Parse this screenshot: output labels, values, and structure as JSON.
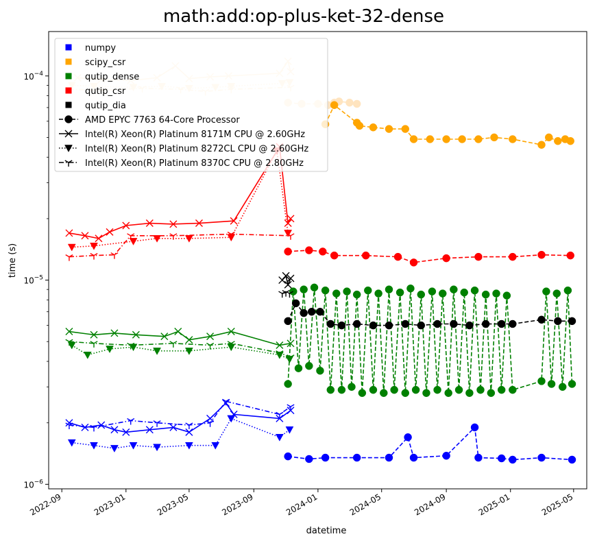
{
  "chart_data": {
    "type": "line",
    "title": "math:add:op-plus-ket-32-dense",
    "xlabel": "datetime",
    "ylabel": "time (s)",
    "yscale": "log",
    "ylim": [
      9.5e-07,
      0.000165
    ],
    "xlim": [
      "2022-08-07",
      "2025-05-26"
    ],
    "x_ticks": [
      "2022-09",
      "2023-01",
      "2023-05",
      "2023-09",
      "2024-01",
      "2024-05",
      "2024-09",
      "2025-01",
      "2025-05"
    ],
    "y_ticks": [
      {
        "value": 1e-06,
        "label": "10",
        "exp": "−6"
      },
      {
        "value": 1e-05,
        "label": "10",
        "exp": "−5"
      },
      {
        "value": 0.0001,
        "label": "10",
        "exp": "−4"
      }
    ],
    "legend_position": "upper-left",
    "legend_colors": [
      {
        "name": "numpy",
        "color": "#0000ff"
      },
      {
        "name": "scipy_csr",
        "color": "#ffa500"
      },
      {
        "name": "qutip_dense",
        "color": "#008000"
      },
      {
        "name": "qutip_csr",
        "color": "#ff0000"
      },
      {
        "name": "qutip_dia",
        "color": "#000000"
      }
    ],
    "legend_cpus": [
      {
        "name": "AMD EPYC 7763 64-Core Processor",
        "marker": "circle",
        "dash": "dashed"
      },
      {
        "name": "Intel(R) Xeon(R) Platinum 8171M CPU @ 2.60GHz",
        "marker": "x",
        "dash": "solid"
      },
      {
        "name": "Intel(R) Xeon(R) Platinum 8272CL CPU @ 2.60GHz",
        "marker": "triangle-down",
        "dash": "dotted"
      },
      {
        "name": "Intel(R) Xeon(R) Platinum 8370C CPU @ 2.80GHz",
        "marker": "tri-down",
        "dash": "dashdot"
      }
    ],
    "series": [
      {
        "library": "scipy_csr",
        "color": "#ffe4bf",
        "cpu": "8171M",
        "marker": "x",
        "dash": "solid",
        "x": [
          "2022-10-01",
          "2022-11-15",
          "2023-01-10",
          "2023-03-01",
          "2023-04-05",
          "2023-05-01",
          "2023-06-10",
          "2023-07-15",
          "2023-10-20",
          "2023-11-05",
          "2023-11-10"
        ],
        "y": [
          9.8e-05,
          9.6e-05,
          9.5e-05,
          9.8e-05,
          0.000112,
          9.7e-05,
          9.9e-05,
          0.0001,
          0.000103,
          0.000118,
          0.000105
        ]
      },
      {
        "library": "scipy_csr",
        "color": "#ffe4bf",
        "cpu": "8272CL",
        "marker": "triangle-down",
        "dash": "dotted",
        "x": [
          "2022-09-20",
          "2022-11-01",
          "2023-01-15",
          "2023-03-10",
          "2023-05-01",
          "2023-06-20",
          "2023-07-20",
          "2023-10-25",
          "2023-11-08"
        ],
        "y": [
          9e-05,
          8.9e-05,
          8.8e-05,
          8.9e-05,
          8.7e-05,
          8.8e-05,
          8.9e-05,
          9.2e-05,
          9.3e-05
        ]
      },
      {
        "library": "scipy_csr",
        "color": "#ffe4bf",
        "cpu": "8370C",
        "marker": "tri-down",
        "dash": "dashdot",
        "x": [
          "2022-09-15",
          "2022-11-20",
          "2023-02-01",
          "2023-04-15",
          "2023-06-01",
          "2023-07-20",
          "2023-11-10"
        ],
        "y": [
          8.6e-05,
          8.5e-05,
          8.7e-05,
          8.6e-05,
          8.4e-05,
          8.6e-05,
          8.8e-05
        ]
      },
      {
        "library": "scipy_csr",
        "color": "#ffe4bf",
        "cpu": "EPYC",
        "marker": "circle",
        "dash": "dashed",
        "x": [
          "2023-11-05",
          "2023-12-01",
          "2024-01-01",
          "2024-01-20",
          "2024-02-01",
          "2024-02-10",
          "2024-03-01",
          "2024-03-15"
        ],
        "y": [
          7.4e-05,
          7.3e-05,
          7.3e-05,
          7.2e-05,
          7.4e-05,
          7.5e-05,
          7.4e-05,
          7.3e-05
        ]
      },
      {
        "library": "scipy_csr",
        "color": "#ffa500",
        "cpu": "EPYC",
        "marker": "circle",
        "dash": "dashed",
        "x": [
          "2024-01-15",
          "2024-02-01",
          "2024-03-15",
          "2024-03-20",
          "2024-04-15",
          "2024-05-15",
          "2024-06-15",
          "2024-07-01",
          "2024-08-01",
          "2024-09-01",
          "2024-10-01",
          "2024-11-01",
          "2024-12-01",
          "2025-01-05",
          "2025-03-01",
          "2025-03-15",
          "2025-04-01",
          "2025-04-15",
          "2025-04-25"
        ],
        "y": [
          5.8e-05,
          7.2e-05,
          5.9e-05,
          5.7e-05,
          5.6e-05,
          5.5e-05,
          5.5e-05,
          4.9e-05,
          4.9e-05,
          4.9e-05,
          4.9e-05,
          4.9e-05,
          5e-05,
          4.9e-05,
          4.6e-05,
          5e-05,
          4.8e-05,
          4.9e-05,
          4.8e-05
        ]
      },
      {
        "library": "qutip_csr",
        "color": "#ff0000",
        "cpu": "8171M",
        "marker": "x",
        "dash": "solid",
        "x": [
          "2022-09-15",
          "2022-10-15",
          "2022-11-10",
          "2022-12-01",
          "2023-01-01",
          "2023-02-15",
          "2023-04-01",
          "2023-05-20",
          "2023-07-25",
          "2023-10-20",
          "2023-11-05",
          "2023-11-10"
        ],
        "y": [
          1.7e-05,
          1.65e-05,
          1.6e-05,
          1.72e-05,
          1.85e-05,
          1.9e-05,
          1.88e-05,
          1.9e-05,
          1.95e-05,
          4.5e-05,
          1.9e-05,
          2e-05
        ]
      },
      {
        "library": "qutip_csr",
        "color": "#ff0000",
        "cpu": "8272CL",
        "marker": "triangle-down",
        "dash": "dotted",
        "x": [
          "2022-09-20",
          "2022-11-01",
          "2023-01-15",
          "2023-03-01",
          "2023-05-01",
          "2023-07-20",
          "2023-10-15",
          "2023-11-05"
        ],
        "y": [
          1.45e-05,
          1.47e-05,
          1.55e-05,
          1.6e-05,
          1.6e-05,
          1.62e-05,
          4.3e-05,
          1.7e-05
        ]
      },
      {
        "library": "qutip_csr",
        "color": "#ff0000",
        "cpu": "8370C",
        "marker": "tri-down",
        "dash": "dashdot",
        "x": [
          "2022-09-15",
          "2022-11-01",
          "2022-12-10",
          "2023-01-10",
          "2023-04-01",
          "2023-07-20",
          "2023-11-10"
        ],
        "y": [
          1.3e-05,
          1.32e-05,
          1.33e-05,
          1.65e-05,
          1.65e-05,
          1.68e-05,
          1.65e-05
        ]
      },
      {
        "library": "qutip_csr",
        "color": "#ff0000",
        "cpu": "EPYC",
        "marker": "circle",
        "dash": "dashed",
        "x": [
          "2023-11-05",
          "2023-12-15",
          "2024-01-10",
          "2024-02-01",
          "2024-04-01",
          "2024-06-01",
          "2024-07-01",
          "2024-09-01",
          "2024-11-01",
          "2025-01-05",
          "2025-03-01",
          "2025-04-25"
        ],
        "y": [
          1.38e-05,
          1.4e-05,
          1.38e-05,
          1.32e-05,
          1.32e-05,
          1.3e-05,
          1.22e-05,
          1.28e-05,
          1.3e-05,
          1.3e-05,
          1.33e-05,
          1.32e-05
        ]
      },
      {
        "library": "qutip_dense",
        "color": "#008000",
        "cpu": "8171M",
        "marker": "x",
        "dash": "solid",
        "x": [
          "2022-09-15",
          "2022-11-01",
          "2022-12-10",
          "2023-01-20",
          "2023-03-15",
          "2023-04-10",
          "2023-05-01",
          "2023-06-10",
          "2023-07-20",
          "2023-10-20",
          "2023-11-10"
        ],
        "y": [
          5.6e-06,
          5.4e-06,
          5.5e-06,
          5.4e-06,
          5.3e-06,
          5.6e-06,
          5.1e-06,
          5.3e-06,
          5.6e-06,
          4.8e-06,
          4.9e-06
        ]
      },
      {
        "library": "qutip_dense",
        "color": "#008000",
        "cpu": "8272CL",
        "marker": "triangle-down",
        "dash": "dotted",
        "x": [
          "2022-09-20",
          "2022-10-20",
          "2022-12-01",
          "2023-01-15",
          "2023-03-01",
          "2023-05-01",
          "2023-07-20",
          "2023-10-20",
          "2023-11-08"
        ],
        "y": [
          4.8e-06,
          4.3e-06,
          4.6e-06,
          4.7e-06,
          4.5e-06,
          4.5e-06,
          4.7e-06,
          4.3e-06,
          4.1e-06
        ]
      },
      {
        "library": "qutip_dense",
        "color": "#008000",
        "cpu": "8370C",
        "marker": "tri-down",
        "dash": "dashdot",
        "x": [
          "2022-09-15",
          "2022-11-01",
          "2023-01-10",
          "2023-04-01",
          "2023-06-10",
          "2023-07-20",
          "2023-10-20",
          "2023-11-10"
        ],
        "y": [
          5e-06,
          4.9e-06,
          4.8e-06,
          4.9e-06,
          4.8e-06,
          4.9e-06,
          4.4e-06,
          4.2e-06
        ]
      },
      {
        "library": "qutip_dense",
        "color": "#008000",
        "cpu": "EPYC",
        "marker": "circle",
        "dash": "dashed",
        "x": [
          "2023-11-05",
          "2023-11-15",
          "2023-11-25",
          "2023-12-05",
          "2023-12-15",
          "2023-12-25",
          "2024-01-05",
          "2024-01-15",
          "2024-01-25",
          "2024-02-05",
          "2024-02-15",
          "2024-02-25",
          "2024-03-05",
          "2024-03-15",
          "2024-03-25",
          "2024-04-05",
          "2024-04-15",
          "2024-04-25",
          "2024-05-05",
          "2024-05-15",
          "2024-05-25",
          "2024-06-05",
          "2024-06-15",
          "2024-06-25",
          "2024-07-05",
          "2024-07-15",
          "2024-07-25",
          "2024-08-05",
          "2024-08-15",
          "2024-08-25",
          "2024-09-05",
          "2024-09-15",
          "2024-09-25",
          "2024-10-05",
          "2024-10-15",
          "2024-10-25",
          "2024-11-05",
          "2024-11-15",
          "2024-11-25",
          "2024-12-05",
          "2024-12-15",
          "2024-12-25",
          "2025-01-05",
          "2025-03-01",
          "2025-03-10",
          "2025-03-20",
          "2025-03-30",
          "2025-04-10",
          "2025-04-20",
          "2025-04-28"
        ],
        "y": [
          3.1e-06,
          8.8e-06,
          3.7e-06,
          9e-06,
          3.8e-06,
          9.2e-06,
          3.6e-06,
          8.9e-06,
          2.9e-06,
          8.6e-06,
          2.9e-06,
          8.8e-06,
          3e-06,
          8.5e-06,
          2.8e-06,
          8.9e-06,
          2.9e-06,
          8.6e-06,
          2.8e-06,
          9e-06,
          2.9e-06,
          8.7e-06,
          2.8e-06,
          9.1e-06,
          2.9e-06,
          8.5e-06,
          2.8e-06,
          8.8e-06,
          2.9e-06,
          8.6e-06,
          2.8e-06,
          9e-06,
          2.9e-06,
          8.7e-06,
          2.8e-06,
          8.9e-06,
          2.9e-06,
          8.5e-06,
          2.8e-06,
          8.6e-06,
          2.9e-06,
          8.4e-06,
          2.9e-06,
          3.2e-06,
          8.8e-06,
          3.1e-06,
          8.6e-06,
          3e-06,
          8.9e-06,
          3.1e-06
        ]
      },
      {
        "library": "qutip_dia",
        "color": "#000000",
        "cpu": "8171M",
        "marker": "x",
        "dash": "solid",
        "x": [
          "2023-10-25",
          "2023-11-01",
          "2023-11-05",
          "2023-11-10"
        ],
        "y": [
          1e-05,
          1.05e-05,
          9.5e-06,
          1.02e-05
        ]
      },
      {
        "library": "qutip_dia",
        "color": "#000000",
        "cpu": "8370C",
        "marker": "tri-down",
        "dash": "dashdot",
        "x": [
          "2023-10-25",
          "2023-11-01",
          "2023-11-08"
        ],
        "y": [
          8.6e-06,
          8.7e-06,
          8.6e-06
        ]
      },
      {
        "library": "qutip_dia",
        "color": "#000000",
        "cpu": "EPYC",
        "marker": "circle",
        "dash": "dashed",
        "x": [
          "2023-11-05",
          "2023-11-20",
          "2023-12-05",
          "2023-12-20",
          "2024-01-05",
          "2024-01-25",
          "2024-02-15",
          "2024-03-15",
          "2024-04-15",
          "2024-05-15",
          "2024-06-15",
          "2024-07-15",
          "2024-08-15",
          "2024-09-15",
          "2024-10-15",
          "2024-11-15",
          "2024-12-15",
          "2025-01-05",
          "2025-03-01",
          "2025-04-01",
          "2025-04-28"
        ],
        "y": [
          6.3e-06,
          7.7e-06,
          6.9e-06,
          7e-06,
          7e-06,
          6.1e-06,
          6e-06,
          6.1e-06,
          6e-06,
          6e-06,
          6.1e-06,
          6e-06,
          6.1e-06,
          6.1e-06,
          6e-06,
          6.1e-06,
          6.1e-06,
          6.1e-06,
          6.4e-06,
          6.3e-06,
          6.3e-06
        ]
      },
      {
        "library": "numpy",
        "color": "#0000ff",
        "cpu": "8171M",
        "marker": "x",
        "dash": "solid",
        "x": [
          "2022-09-15",
          "2022-10-15",
          "2022-11-15",
          "2022-12-10",
          "2023-01-01",
          "2023-02-15",
          "2023-04-01",
          "2023-05-01",
          "2023-06-10",
          "2023-07-10",
          "2023-07-25",
          "2023-10-20",
          "2023-11-10"
        ],
        "y": [
          2e-06,
          1.9e-06,
          1.95e-06,
          1.85e-06,
          1.8e-06,
          1.85e-06,
          1.9e-06,
          1.8e-06,
          2.1e-06,
          2.5e-06,
          2.2e-06,
          2.1e-06,
          2.3e-06
        ]
      },
      {
        "library": "numpy",
        "color": "#0000ff",
        "cpu": "8272CL",
        "marker": "triangle-down",
        "dash": "dotted",
        "x": [
          "2022-09-20",
          "2022-11-01",
          "2022-12-10",
          "2023-01-15",
          "2023-03-01",
          "2023-05-01",
          "2023-06-20",
          "2023-07-20",
          "2023-10-20",
          "2023-11-08"
        ],
        "y": [
          1.6e-06,
          1.55e-06,
          1.5e-06,
          1.55e-06,
          1.52e-06,
          1.55e-06,
          1.55e-06,
          2.1e-06,
          1.7e-06,
          1.85e-06
        ]
      },
      {
        "library": "numpy",
        "color": "#0000ff",
        "cpu": "8370C",
        "marker": "tri-down",
        "dash": "dashdot",
        "x": [
          "2022-09-15",
          "2022-11-01",
          "2023-01-10",
          "2023-03-01",
          "2023-05-01",
          "2023-06-10",
          "2023-07-10",
          "2023-10-20",
          "2023-11-10"
        ],
        "y": [
          1.95e-06,
          1.9e-06,
          2.05e-06,
          2e-06,
          1.95e-06,
          2e-06,
          2.55e-06,
          2.2e-06,
          2.4e-06
        ]
      },
      {
        "library": "numpy",
        "color": "#0000ff",
        "cpu": "EPYC",
        "marker": "circle",
        "dash": "dashed",
        "x": [
          "2023-11-05",
          "2023-12-15",
          "2024-01-15",
          "2024-03-15",
          "2024-05-15",
          "2024-06-20",
          "2024-07-01",
          "2024-09-01",
          "2024-10-25",
          "2024-11-01",
          "2024-12-15",
          "2025-01-05",
          "2025-03-01",
          "2025-04-28"
        ],
        "y": [
          1.37e-06,
          1.33e-06,
          1.35e-06,
          1.35e-06,
          1.35e-06,
          1.7e-06,
          1.35e-06,
          1.38e-06,
          1.9e-06,
          1.35e-06,
          1.34e-06,
          1.32e-06,
          1.35e-06,
          1.32e-06
        ]
      }
    ]
  }
}
